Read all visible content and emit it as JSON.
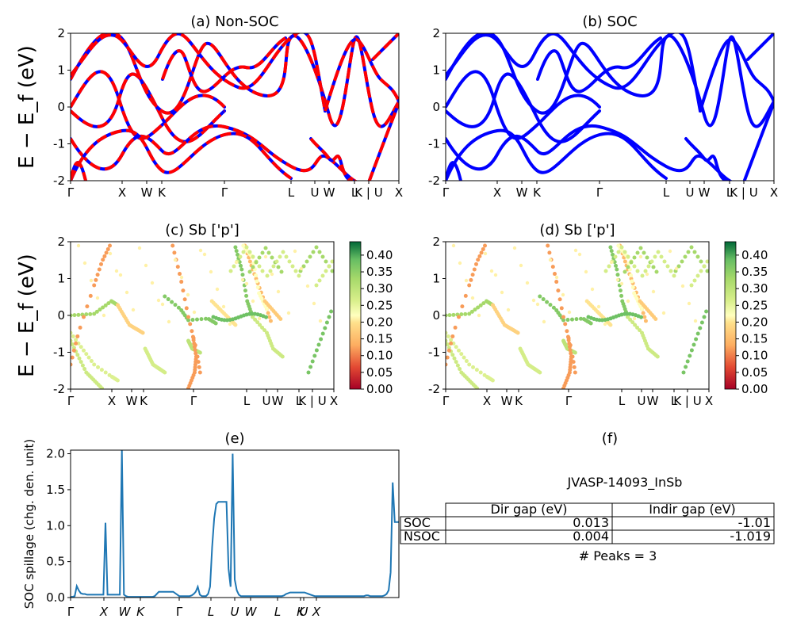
{
  "ylabel_band": "E − E_f (eV)",
  "band_ticks": [
    "Γ",
    "X",
    "W",
    "K",
    "Γ",
    "L",
    "U",
    "W",
    "L",
    "K | U",
    "X"
  ],
  "band_ticks_cd": [
    "Γ",
    "X",
    "W",
    "K",
    "Γ",
    "L",
    "U",
    "W",
    "L",
    "K | U",
    "X"
  ],
  "colorbar_ticks": [
    "0.00",
    "0.05",
    "0.10",
    "0.15",
    "0.20",
    "0.25",
    "0.30",
    "0.35",
    "0.40"
  ],
  "colors": {
    "band_blue": "#0000ff",
    "band_red": "#ff0000",
    "spillage_line": "#1f77b4"
  },
  "table": {
    "title": "JVASP-14093_InSb",
    "header": [
      "",
      "Dir gap (eV)",
      "Indir gap (eV)"
    ],
    "rows": [
      [
        "SOC",
        "0.013",
        "-1.01"
      ],
      [
        "NSOC",
        "0.004",
        "-1.019"
      ]
    ],
    "caption": "# Peaks = 3"
  },
  "chart_data": [
    {
      "type": "line",
      "title": "(a) Non-SOC",
      "ylabel": "E − E_f (eV)",
      "ylim": [
        -2,
        2
      ],
      "x_ticks": [
        "Γ",
        "X",
        "W",
        "K",
        "Γ",
        "L",
        "U",
        "W",
        "L",
        "K | U",
        "X"
      ],
      "y_ticks": [
        -2,
        -1,
        0,
        1,
        2
      ],
      "series": []
    },
    {
      "type": "line",
      "title": "(b) SOC",
      "ylim": [
        -2,
        2
      ],
      "x_ticks": [
        "Γ",
        "X",
        "W",
        "K",
        "Γ",
        "L",
        "U",
        "W",
        "L",
        "K | U",
        "X"
      ],
      "y_ticks": [
        -2,
        -1,
        0,
        1,
        2
      ],
      "series": []
    },
    {
      "type": "scatter",
      "title": "(c)  Sb ['p']",
      "ylabel": "E − E_f (eV)",
      "ylim": [
        -2,
        2
      ],
      "colorbar": {
        "range": [
          0,
          0.44
        ],
        "ticks": [
          0,
          0.05,
          0.1,
          0.15,
          0.2,
          0.25,
          0.3,
          0.35,
          0.4
        ],
        "colormap": "RdYlGn"
      }
    },
    {
      "type": "scatter",
      "title": "(d) Sb ['p']",
      "ylim": [
        -2,
        2
      ],
      "colorbar": {
        "range": [
          0,
          0.44
        ],
        "ticks": [
          0,
          0.05,
          0.1,
          0.15,
          0.2,
          0.25,
          0.3,
          0.35,
          0.4
        ],
        "colormap": "RdYlGn"
      }
    },
    {
      "type": "line",
      "title": "(e)",
      "ylabel": "SOC spillage (chg. den. unit)",
      "ylim": [
        0,
        2.05
      ],
      "y_ticks": [
        "0.0",
        "0.5",
        "1.0",
        "1.5",
        "2.0"
      ],
      "x_ticks": [
        "Γ",
        "X",
        "W",
        "K",
        "Γ",
        "L",
        "U",
        "W",
        "L",
        "K",
        "U",
        "X"
      ],
      "x": [
        0,
        0.05,
        0.1,
        0.15,
        0.2,
        0.25,
        0.3,
        0.35,
        0.4,
        0.45,
        0.5,
        0.55,
        0.6,
        0.65,
        0.7,
        0.75,
        0.8,
        0.85,
        0.9,
        0.95,
        1.0,
        1.05,
        1.1,
        1.15,
        1.2,
        1.25,
        1.3,
        1.35,
        1.4,
        1.45,
        1.5,
        1.55,
        1.6,
        1.65,
        1.7,
        1.75,
        1.8,
        1.85,
        1.9,
        1.95,
        2.0,
        2.05,
        2.1,
        2.15,
        2.2,
        2.25,
        2.3,
        2.35,
        2.4,
        2.45,
        2.5,
        2.55,
        2.6,
        2.65,
        2.7,
        2.75,
        2.8,
        2.85,
        2.9,
        2.95,
        3.0,
        3.05,
        3.1,
        3.15,
        3.2,
        3.25,
        3.3,
        3.35,
        3.4,
        3.45,
        3.5,
        3.55,
        3.6,
        3.65,
        3.7,
        3.75,
        3.8,
        3.85,
        3.9,
        3.95,
        4.0,
        4.05,
        4.1,
        4.15,
        4.2,
        4.25,
        4.3,
        4.35,
        4.4,
        4.45,
        4.5,
        4.55,
        4.6,
        4.65,
        4.7,
        4.75,
        4.8,
        4.85,
        4.9,
        4.95,
        5.0,
        5.05,
        5.1,
        5.15,
        5.2,
        5.25,
        5.3,
        5.35,
        5.4,
        5.45,
        5.5,
        5.55,
        5.6,
        5.65,
        5.7,
        5.75,
        5.8,
        5.85,
        5.9,
        5.95,
        6.0,
        6.05,
        6.1,
        6.15,
        6.2,
        6.25,
        6.3,
        6.35,
        6.4,
        6.45,
        6.5,
        6.55,
        6.6,
        6.65,
        6.7,
        6.75,
        6.8,
        6.85,
        6.9,
        6.95,
        7.0,
        7.05,
        7.1,
        7.15,
        7.2,
        7.25,
        7.3,
        7.35,
        7.4,
        7.45,
        7.5,
        7.55,
        7.6,
        7.65,
        7.7,
        7.75,
        7.8,
        7.85,
        7.9,
        7.95,
        8.0
      ],
      "values": [
        0.01,
        0.01,
        0.02,
        0.16,
        0.1,
        0.06,
        0.05,
        0.05,
        0.04,
        0.04,
        0.04,
        0.04,
        0.04,
        0.04,
        0.04,
        0.04,
        0.04,
        1.04,
        0.04,
        0.04,
        0.04,
        0.04,
        0.04,
        0.04,
        0.04,
        2.05,
        0.04,
        0.02,
        0.01,
        0.01,
        0.01,
        0.01,
        0.01,
        0.01,
        0.01,
        0.01,
        0.01,
        0.01,
        0.01,
        0.01,
        0.01,
        0.02,
        0.05,
        0.08,
        0.08,
        0.08,
        0.08,
        0.08,
        0.08,
        0.08,
        0.08,
        0.06,
        0.04,
        0.02,
        0.02,
        0.02,
        0.02,
        0.02,
        0.02,
        0.03,
        0.05,
        0.08,
        0.15,
        0.04,
        0.02,
        0.02,
        0.02,
        0.05,
        0.15,
        0.7,
        1.1,
        1.3,
        1.33,
        1.33,
        1.33,
        1.33,
        1.33,
        0.4,
        0.15,
        2.0,
        0.25,
        0.1,
        0.04,
        0.02,
        0.02,
        0.02,
        0.02,
        0.02,
        0.02,
        0.02,
        0.02,
        0.02,
        0.02,
        0.02,
        0.02,
        0.02,
        0.02,
        0.02,
        0.02,
        0.02,
        0.02,
        0.02,
        0.02,
        0.02,
        0.03,
        0.05,
        0.06,
        0.07,
        0.07,
        0.07,
        0.07,
        0.07,
        0.07,
        0.07,
        0.07,
        0.06,
        0.05,
        0.04,
        0.03,
        0.02,
        0.02,
        0.02,
        0.02,
        0.02,
        0.02,
        0.02,
        0.02,
        0.02,
        0.02,
        0.02,
        0.02,
        0.02,
        0.02,
        0.02,
        0.02,
        0.02,
        0.02,
        0.02,
        0.02,
        0.02,
        0.02,
        0.02,
        0.02,
        0.02,
        0.03,
        0.03,
        0.02,
        0.02,
        0.02,
        0.02,
        0.02,
        0.02,
        0.02,
        0.03,
        0.05,
        0.1,
        0.35,
        1.6,
        1.05,
        1.05,
        1.05
      ]
    }
  ]
}
